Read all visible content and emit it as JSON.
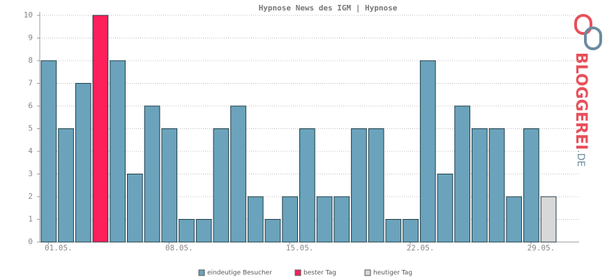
{
  "chart_data": {
    "type": "bar",
    "title": "Hypnose News des IGM | Hypnose",
    "categories": [
      "01.05.",
      null,
      null,
      null,
      null,
      null,
      null,
      "08.05.",
      null,
      null,
      null,
      null,
      null,
      null,
      "15.05.",
      null,
      null,
      null,
      null,
      null,
      null,
      "22.05.",
      null,
      null,
      null,
      null,
      null,
      null,
      "29.05.",
      null
    ],
    "values": [
      8,
      5,
      7,
      10,
      8,
      3,
      6,
      5,
      1,
      1,
      5,
      6,
      2,
      1,
      2,
      5,
      2,
      2,
      5,
      5,
      1,
      1,
      8,
      3,
      6,
      5,
      5,
      2,
      5,
      2
    ],
    "colors": [
      "#6aa3bb",
      "#6aa3bb",
      "#6aa3bb",
      "#ff1f5a",
      "#6aa3bb",
      "#6aa3bb",
      "#6aa3bb",
      "#6aa3bb",
      "#6aa3bb",
      "#6aa3bb",
      "#6aa3bb",
      "#6aa3bb",
      "#6aa3bb",
      "#6aa3bb",
      "#6aa3bb",
      "#6aa3bb",
      "#6aa3bb",
      "#6aa3bb",
      "#6aa3bb",
      "#6aa3bb",
      "#6aa3bb",
      "#6aa3bb",
      "#6aa3bb",
      "#6aa3bb",
      "#6aa3bb",
      "#6aa3bb",
      "#6aa3bb",
      "#6aa3bb",
      "#6aa3bb",
      "#d8d8d8"
    ],
    "ylim": [
      0,
      10
    ],
    "yticks": [
      0,
      1,
      2,
      3,
      4,
      5,
      6,
      7,
      8,
      9,
      10
    ],
    "grid": true,
    "legend": [
      {
        "label": "eindeutige Besucher",
        "color": "#6aa3bb"
      },
      {
        "label": "bester Tag",
        "color": "#ff1f5a"
      },
      {
        "label": "heutiger Tag",
        "color": "#d8d8d8"
      }
    ]
  },
  "logo": {
    "main": "BLOGGEREI",
    "suffix": ".DE"
  }
}
